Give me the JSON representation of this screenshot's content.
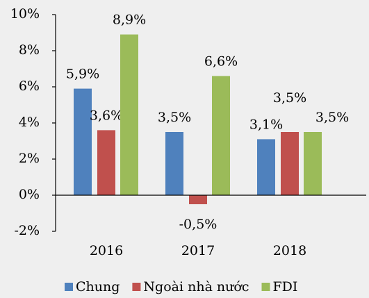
{
  "chart_data": {
    "type": "bar",
    "categories": [
      "2016",
      "2017",
      "2018"
    ],
    "series": [
      {
        "name": "Chung",
        "color": "#4f81bd",
        "values": [
          5.9,
          3.5,
          3.1
        ],
        "value_labels": [
          "5,9%",
          "3,5%",
          "3,1%"
        ]
      },
      {
        "name": "Ngoài nhà nước",
        "color": "#c0504d",
        "values": [
          3.6,
          -0.5,
          3.5
        ],
        "value_labels": [
          "3,6%",
          "-0,5%",
          "3,5%"
        ]
      },
      {
        "name": "FDI",
        "color": "#9bbb59",
        "values": [
          8.9,
          6.6,
          3.5
        ],
        "value_labels": [
          "8,9%",
          "6,6%",
          "3,5%"
        ]
      }
    ],
    "ylim": [
      -2,
      10
    ],
    "yticks": [
      {
        "value": -2,
        "label": "-2%"
      },
      {
        "value": 0,
        "label": "0%"
      },
      {
        "value": 2,
        "label": "2%"
      },
      {
        "value": 4,
        "label": "4%"
      },
      {
        "value": 6,
        "label": "6%"
      },
      {
        "value": 8,
        "label": "8%"
      },
      {
        "value": 10,
        "label": "10%"
      }
    ],
    "legend": "bottom"
  }
}
